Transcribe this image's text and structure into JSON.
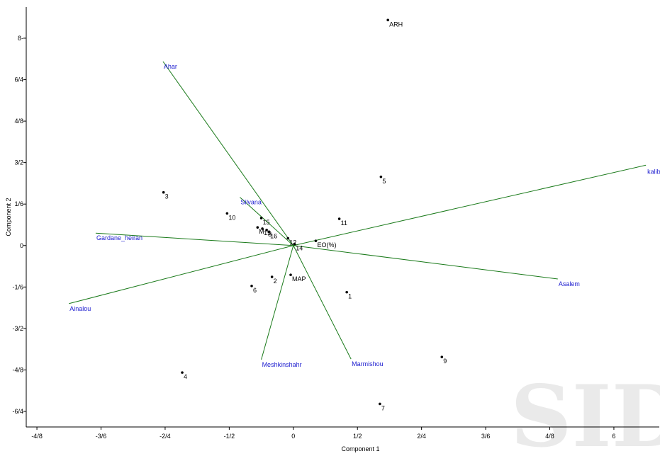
{
  "chart_data": {
    "type": "scatter",
    "title": "",
    "xlabel": "Component 1",
    "ylabel": "Component 2",
    "xlim": [
      -5.0,
      6.85
    ],
    "ylim": [
      -7.0,
      9.2
    ],
    "x_ticks": [
      {
        "value": -4.8,
        "label": "-4/8"
      },
      {
        "value": -3.6,
        "label": "-3/6"
      },
      {
        "value": -2.4,
        "label": "-2/4"
      },
      {
        "value": -1.2,
        "label": "-1/2"
      },
      {
        "value": 0,
        "label": "0"
      },
      {
        "value": 1.2,
        "label": "1/2"
      },
      {
        "value": 2.4,
        "label": "2/4"
      },
      {
        "value": 3.6,
        "label": "3/6"
      },
      {
        "value": 4.8,
        "label": "4/8"
      },
      {
        "value": 6,
        "label": "6"
      }
    ],
    "y_ticks": [
      {
        "value": -6.4,
        "label": "-6/4"
      },
      {
        "value": -4.8,
        "label": "-4/8"
      },
      {
        "value": -3.2,
        "label": "-3/2"
      },
      {
        "value": -1.6,
        "label": "-1/6"
      },
      {
        "value": 0,
        "label": "0"
      },
      {
        "value": 1.6,
        "label": "1/6"
      },
      {
        "value": 3.2,
        "label": "3/2"
      },
      {
        "value": 4.8,
        "label": "4/8"
      },
      {
        "value": 6.4,
        "label": "6/4"
      },
      {
        "value": 8,
        "label": "8-"
      }
    ],
    "points": [
      {
        "label": "ARH",
        "x": 1.77,
        "y": 8.7
      },
      {
        "label": "5",
        "x": 1.64,
        "y": 2.65
      },
      {
        "label": "3",
        "x": -2.43,
        "y": 2.05
      },
      {
        "label": "10",
        "x": -1.24,
        "y": 1.24
      },
      {
        "label": "11",
        "x": 0.86,
        "y": 1.03
      },
      {
        "label": "15",
        "x": -0.6,
        "y": 1.06
      },
      {
        "label": "13",
        "x": -0.58,
        "y": 0.65
      },
      {
        "label": "M",
        "x": -0.67,
        "y": 0.7
      },
      {
        "label": "8",
        "x": -0.5,
        "y": 0.6
      },
      {
        "label": "16",
        "x": -0.46,
        "y": 0.53
      },
      {
        "label": "12",
        "x": -0.1,
        "y": 0.28
      },
      {
        "label": "14",
        "x": 0.02,
        "y": 0.06
      },
      {
        "label": "EO(%)",
        "x": 0.42,
        "y": 0.18
      },
      {
        "label": "MAP",
        "x": -0.05,
        "y": -1.13
      },
      {
        "label": "2",
        "x": -0.4,
        "y": -1.21
      },
      {
        "label": "6",
        "x": -0.78,
        "y": -1.56
      },
      {
        "label": "1",
        "x": 1.0,
        "y": -1.8
      },
      {
        "label": "9",
        "x": 2.78,
        "y": -4.3
      },
      {
        "label": "4",
        "x": -2.08,
        "y": -4.9
      },
      {
        "label": "7",
        "x": 1.62,
        "y": -6.11
      }
    ],
    "vectors": [
      {
        "name": "kalibar",
        "x": 6.6,
        "y": 3.1
      },
      {
        "name": "Ahar",
        "x": -2.44,
        "y": 7.1
      },
      {
        "name": "Silvana",
        "x": -1.0,
        "y": 1.86
      },
      {
        "name": "Gardane_heiran",
        "x": -3.7,
        "y": 0.48
      },
      {
        "name": "Ainalou",
        "x": -4.2,
        "y": -2.24
      },
      {
        "name": "Asalem",
        "x": 4.95,
        "y": -1.29
      },
      {
        "name": "Meshkinshahr",
        "x": -0.6,
        "y": -4.4
      },
      {
        "name": "Marmishou",
        "x": 1.08,
        "y": -4.38
      }
    ],
    "marker_color": "#000000",
    "vector_color": "#1a7a1a",
    "vector_label_color": "#2020d0",
    "grid": false
  },
  "watermark": {
    "text": "SID",
    "color": "#bdbdbd"
  }
}
